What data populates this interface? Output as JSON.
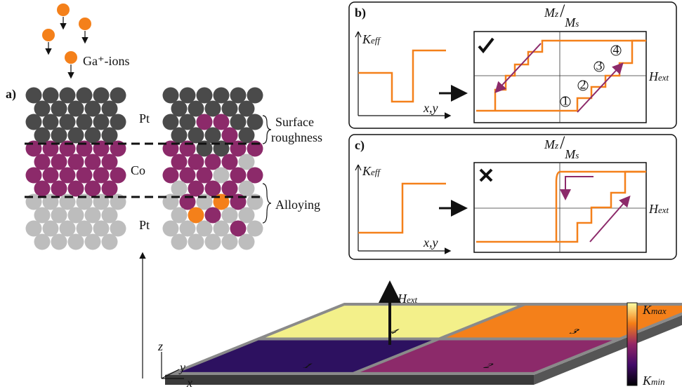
{
  "panel_a": {
    "label": "a)",
    "ions": "Ga⁺-ions",
    "layers": [
      "Pt",
      "Co",
      "Pt"
    ],
    "annotations": [
      "Surface",
      "roughness",
      "Alloying"
    ]
  },
  "panel_b": {
    "label": "b)",
    "k_axis": {
      "symbol": "K",
      "sub": "eff"
    },
    "x_axis": "x,y",
    "m_axis": {
      "num": "M",
      "num_sub": "z",
      "den": "M",
      "den_sub": "s"
    },
    "h_axis": {
      "symbol": "H",
      "sub": "ext"
    },
    "steps": [
      "1",
      "2",
      "3",
      "4"
    ]
  },
  "panel_c": {
    "label": "c)",
    "k_axis": {
      "symbol": "K",
      "sub": "eff"
    },
    "x_axis": "x,y",
    "m_axis": {
      "num": "M",
      "num_sub": "z",
      "den": "M",
      "den_sub": "s"
    },
    "h_axis": {
      "symbol": "H",
      "sub": "ext"
    }
  },
  "sample": {
    "field": {
      "symbol": "H",
      "sub": "ext"
    },
    "axes": [
      "z",
      "y",
      "x"
    ],
    "domains": [
      "1",
      "2",
      "3",
      "4"
    ],
    "colorbar": {
      "max": {
        "symbol": "K",
        "sub": "max"
      },
      "min": {
        "symbol": "K",
        "sub": "min"
      }
    }
  }
}
